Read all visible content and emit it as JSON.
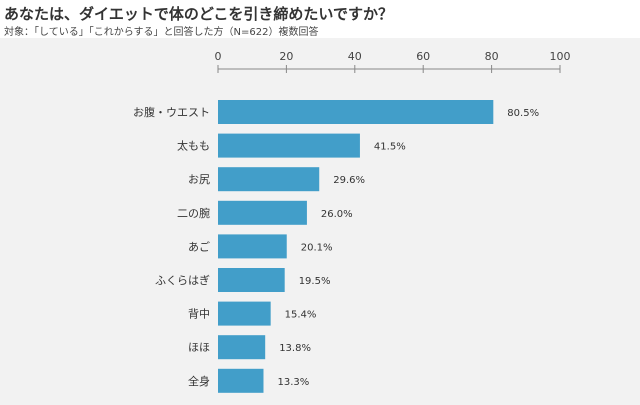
{
  "title": "あなたは、ダイエットで体のどこを引き締めたいですか？",
  "subtitle": "対象：「している」「これからする」と回答した方（N=622）複数回答",
  "colors": {
    "bar": "#429ec9",
    "panel": "#f2f2f2",
    "axis": "#888888"
  },
  "chart_data": {
    "type": "bar",
    "orientation": "horizontal",
    "title": "あなたは、ダイエットで体のどこを引き締めたいですか？",
    "subtitle": "対象：「している」「これからする」と回答した方（N=622）複数回答",
    "categories": [
      "お腹・ウエスト",
      "太もも",
      "お尻",
      "二の腕",
      "あご",
      "ふくらはぎ",
      "背中",
      "ほほ",
      "全身"
    ],
    "values": [
      80.5,
      41.5,
      29.6,
      26.0,
      20.1,
      19.5,
      15.4,
      13.8,
      13.3
    ],
    "value_labels": [
      "80.5%",
      "41.5%",
      "29.6%",
      "26.0%",
      "20.1%",
      "19.5%",
      "15.4%",
      "13.8%",
      "13.3%"
    ],
    "xlim": [
      0,
      100
    ],
    "xticks": [
      "0",
      "20",
      "40",
      "60",
      "80",
      "100"
    ],
    "grid": false,
    "xlabel": "",
    "ylabel": ""
  }
}
